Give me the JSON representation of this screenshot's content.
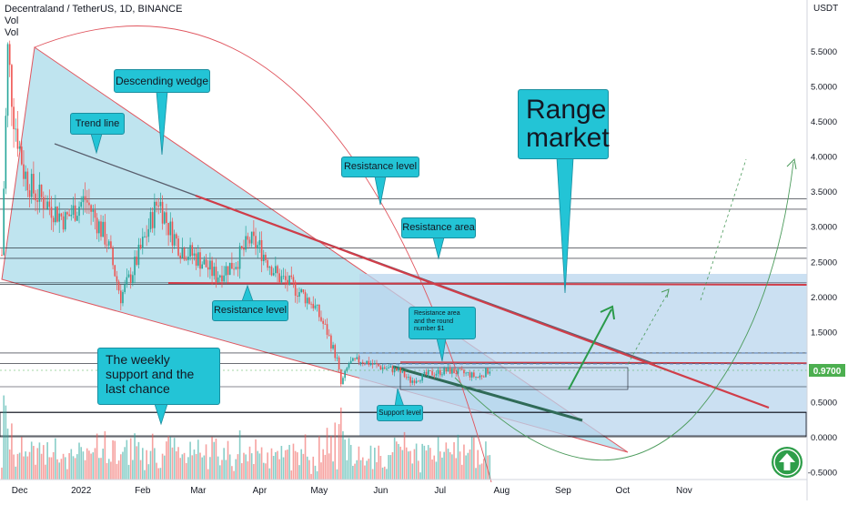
{
  "header": {
    "title": "Decentraland / TetherUS, 1D, BINANCE",
    "vol1": "Vol",
    "vol2": "Vol",
    "currency": "USDT"
  },
  "price_tag": "0.9700",
  "annotations": {
    "descending_wedge": "Descending wedge",
    "trend_line": "Trend line",
    "resistance_level_top": "Resistance level",
    "resistance_area": "Resistance area",
    "range_market": "Range market",
    "resistance_level_mid": "Resistance level",
    "resistance_area_small": "Resistance area and the round number $1",
    "weekly_support": "The weekly support and the last chance",
    "support_level": "Support level"
  },
  "colors": {
    "wedge_fill": "#a9dbe9",
    "range_fill": "#bad5ee",
    "annotation_box": "#23c4d6",
    "resistance_line": "#e0565f",
    "up_candle": "#26a69a",
    "down_candle": "#ef5350",
    "price_tag": "#4caf50",
    "up_arrow_button": "#2e9e4a"
  },
  "icons": {
    "up_arrow_button": "up-arrow-circle-icon"
  },
  "chart_data": {
    "type": "candlestick",
    "title": "Decentraland / TetherUS, 1D, BINANCE",
    "x_axis_ticks": [
      "Dec",
      "2022",
      "Feb",
      "Mar",
      "Apr",
      "May",
      "Jun",
      "Jul",
      "Aug",
      "Sep",
      "Oct",
      "Nov"
    ],
    "y_axis_ticks": [
      5.5,
      5.0,
      4.5,
      4.0,
      3.5,
      3.0,
      2.5,
      2.0,
      1.5,
      1.0,
      0.5,
      0.0,
      -0.5
    ],
    "y_axis_tick_labels": [
      "5.5000",
      "5.0000",
      "4.5000",
      "4.0000",
      "3.5000",
      "3.0000",
      "2.5000",
      "2.0000",
      "1.5000",
      "1.0000",
      "0.5000",
      "0.0000",
      "-0.5000"
    ],
    "ylim": [
      -0.55,
      6.2
    ],
    "y_unit": "USDT",
    "last_price": 0.97,
    "horizontal_levels": [
      3.4,
      3.25,
      2.7,
      2.55,
      2.2,
      2.18,
      1.2,
      1.05,
      0.72,
      0.35,
      0.02
    ],
    "price_path": [
      [
        "2021-11-22",
        2.6
      ],
      [
        "2021-11-25",
        5.5
      ],
      [
        "2021-11-28",
        4.6
      ],
      [
        "2021-12-03",
        3.8
      ],
      [
        "2021-12-08",
        3.5
      ],
      [
        "2021-12-16",
        3.3
      ],
      [
        "2021-12-24",
        3.1
      ],
      [
        "2022-01-03",
        3.4
      ],
      [
        "2022-01-14",
        2.8
      ],
      [
        "2022-01-21",
        2.0
      ],
      [
        "2022-01-26",
        2.3
      ],
      [
        "2022-02-03",
        2.9
      ],
      [
        "2022-02-09",
        3.4
      ],
      [
        "2022-02-14",
        3.0
      ],
      [
        "2022-02-20",
        2.7
      ],
      [
        "2022-03-01",
        2.55
      ],
      [
        "2022-03-10",
        2.3
      ],
      [
        "2022-03-20",
        2.5
      ],
      [
        "2022-03-27",
        2.8
      ],
      [
        "2022-04-01",
        2.7
      ],
      [
        "2022-04-10",
        2.3
      ],
      [
        "2022-04-20",
        2.1
      ],
      [
        "2022-04-28",
        1.9
      ],
      [
        "2022-05-05",
        1.5
      ],
      [
        "2022-05-10",
        1.1
      ],
      [
        "2022-05-12",
        0.75
      ],
      [
        "2022-05-16",
        1.05
      ],
      [
        "2022-05-22",
        1.1
      ],
      [
        "2022-06-01",
        1.0
      ],
      [
        "2022-06-10",
        0.95
      ],
      [
        "2022-06-16",
        0.8
      ],
      [
        "2022-06-25",
        0.9
      ],
      [
        "2022-07-05",
        0.95
      ],
      [
        "2022-07-15",
        0.9
      ],
      [
        "2022-07-20",
        0.85
      ],
      [
        "2022-07-26",
        0.97
      ]
    ]
  }
}
